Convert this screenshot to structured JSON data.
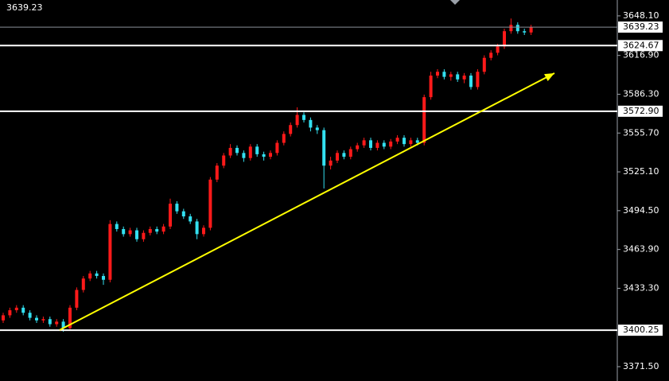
{
  "chart_data": {
    "type": "candlestick",
    "open": [
      3408,
      3412,
      3416,
      3418,
      3414,
      3410,
      3408,
      3409,
      3405,
      3407,
      3402,
      3418,
      3432,
      3441,
      3445,
      3443,
      3440,
      3484,
      3480,
      3476,
      3479,
      3472,
      3477,
      3480,
      3478,
      3482,
      3500,
      3494,
      3490,
      3486,
      3476,
      3481,
      3519,
      3530,
      3538,
      3544,
      3540,
      3536,
      3545,
      3539,
      3537,
      3540,
      3548,
      3555,
      3562,
      3570,
      3566,
      3560,
      3558,
      3530,
      3534,
      3540,
      3537,
      3543,
      3546,
      3550,
      3544,
      3548,
      3545,
      3549,
      3552,
      3547,
      3550,
      3548,
      3584,
      3601,
      3604,
      3600,
      3602,
      3598,
      3601,
      3592,
      3604,
      3615,
      3619,
      3624,
      3636,
      3641,
      3636,
      3635
    ],
    "high": [
      3414,
      3418,
      3420,
      3420,
      3416,
      3412,
      3411,
      3411,
      3409,
      3409,
      3420,
      3434,
      3443,
      3447,
      3447,
      3445,
      3487,
      3486,
      3482,
      3481,
      3481,
      3479,
      3482,
      3482,
      3484,
      3504,
      3502,
      3496,
      3492,
      3488,
      3483,
      3521,
      3532,
      3540,
      3547,
      3546,
      3542,
      3547,
      3547,
      3541,
      3542,
      3550,
      3557,
      3564,
      3576,
      3572,
      3568,
      3562,
      3560,
      3537,
      3542,
      3542,
      3545,
      3548,
      3552,
      3552,
      3550,
      3550,
      3551,
      3554,
      3554,
      3552,
      3552,
      3586,
      3604,
      3606,
      3606,
      3604,
      3604,
      3603,
      3603,
      3606,
      3617,
      3621,
      3626,
      3638,
      3646,
      3643,
      3638,
      3641
    ],
    "low": [
      3406,
      3410,
      3414,
      3412,
      3408,
      3406,
      3406,
      3403,
      3403,
      3399,
      3400,
      3416,
      3430,
      3439,
      3441,
      3436,
      3438,
      3478,
      3474,
      3474,
      3470,
      3470,
      3475,
      3476,
      3476,
      3480,
      3492,
      3488,
      3484,
      3472,
      3474,
      3479,
      3517,
      3528,
      3536,
      3538,
      3533,
      3534,
      3537,
      3534,
      3535,
      3538,
      3546,
      3553,
      3560,
      3564,
      3557,
      3555,
      3512,
      3527,
      3532,
      3535,
      3535,
      3541,
      3544,
      3542,
      3542,
      3543,
      3543,
      3547,
      3545,
      3545,
      3546,
      3546,
      3582,
      3599,
      3598,
      3597,
      3596,
      3595,
      3590,
      3590,
      3602,
      3613,
      3617,
      3622,
      3634,
      3634,
      3633,
      3633
    ],
    "close": [
      3412,
      3416,
      3418,
      3414,
      3410,
      3408,
      3409,
      3405,
      3407,
      3402,
      3418,
      3432,
      3441,
      3445,
      3443,
      3440,
      3484,
      3480,
      3476,
      3479,
      3472,
      3477,
      3480,
      3478,
      3482,
      3500,
      3494,
      3490,
      3486,
      3476,
      3481,
      3519,
      3530,
      3538,
      3544,
      3540,
      3536,
      3545,
      3539,
      3537,
      3540,
      3548,
      3555,
      3562,
      3570,
      3566,
      3560,
      3558,
      3530,
      3534,
      3540,
      3537,
      3543,
      3546,
      3550,
      3544,
      3548,
      3545,
      3549,
      3552,
      3547,
      3550,
      3548,
      3584,
      3601,
      3604,
      3600,
      3602,
      3598,
      3601,
      3592,
      3604,
      3615,
      3619,
      3624,
      3636,
      3641,
      3636,
      3635,
      3639.23
    ],
    "up_color": "#ff1a1a",
    "down_color": "#33e0f0",
    "ylim": [
      3360.2,
      3660.6
    ],
    "yticks": [
      {
        "value": 3648.1,
        "label": "3648.10"
      },
      {
        "value": 3616.9,
        "label": "3616.90"
      },
      {
        "value": 3586.3,
        "label": "3586.30"
      },
      {
        "value": 3555.7,
        "label": "3555.70"
      },
      {
        "value": 3525.1,
        "label": "3525.10"
      },
      {
        "value": 3494.5,
        "label": "3494.50"
      },
      {
        "value": 3463.9,
        "label": "3463.90"
      },
      {
        "value": 3433.3,
        "label": "3433.30"
      },
      {
        "value": 3371.5,
        "label": "3371.50"
      }
    ],
    "levels": [
      {
        "value": 3624.67,
        "label": "3624.67"
      },
      {
        "value": 3572.9,
        "label": "3572.90"
      },
      {
        "value": 3400.25,
        "label": "3400.25"
      }
    ],
    "level_color": "#ffffff",
    "price": {
      "value": 3639.23,
      "label": "3639.23"
    },
    "price_color": "#8a8f99",
    "trendline": {
      "start": {
        "index": 8.45,
        "price": 3400.4
      },
      "end": {
        "index": 82.5,
        "price": 3602.9
      },
      "color": "#ffff00"
    }
  }
}
